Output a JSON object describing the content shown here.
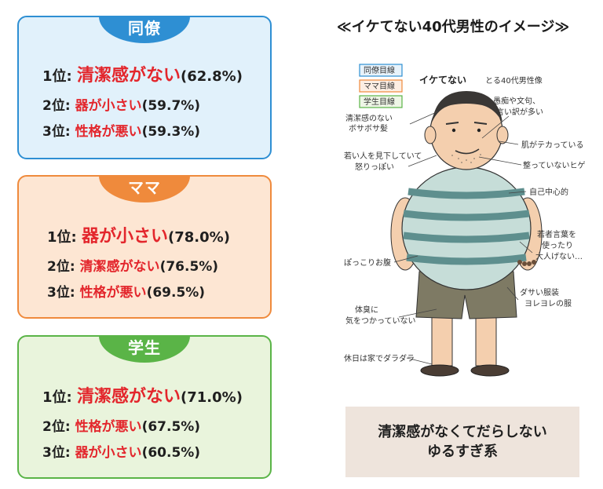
{
  "rankings": [
    {
      "tag": "同僚",
      "items": [
        {
          "rank": "1位:",
          "text": "清潔感がない",
          "pct": "(62.8%)"
        },
        {
          "rank": "2位:",
          "text": "器が小さい",
          "pct": "(59.7%)"
        },
        {
          "rank": "3位:",
          "text": "性格が悪い",
          "pct": "(59.3%)"
        }
      ]
    },
    {
      "tag": "ママ",
      "items": [
        {
          "rank": "1位:",
          "text": "器が小さい",
          "pct": "(78.0%)"
        },
        {
          "rank": "2位:",
          "text": "清潔感がない",
          "pct": "(76.5%)"
        },
        {
          "rank": "3位:",
          "text": "性格が悪い",
          "pct": "(69.5%)"
        }
      ]
    },
    {
      "tag": "学生",
      "items": [
        {
          "rank": "1位:",
          "text": "清潔感がない",
          "pct": "(71.0%)"
        },
        {
          "rank": "2位:",
          "text": "性格が悪い",
          "pct": "(67.5%)"
        },
        {
          "rank": "3位:",
          "text": "器が小さい",
          "pct": "(60.5%)"
        }
      ]
    }
  ],
  "right": {
    "title": "≪イケてない40代男性のイメージ≫",
    "illustration": {
      "legend": [
        "同僚目線",
        "ママ目線",
        "学生目線"
      ],
      "heading_main": "イケてない",
      "heading_sub": "とる40代男性像",
      "annotations": [
        "愚痴や文句、",
        "言い訳が多い",
        "清潔感のない",
        "ボサボサ髪",
        "肌がテカっている",
        "若い人を見下していて",
        "怒りっぽい",
        "整っていないヒゲ",
        "自己中心的",
        "若者言葉を",
        "使ったり",
        "大人げない…",
        "ぽっこりお腹",
        "ダサい服装",
        "ヨレヨレの服",
        "体臭に",
        "気をつかっていない",
        "休日は家でダラダラ"
      ]
    },
    "summary": [
      "清潔感がなくてだらしない",
      "ゆるすぎ系"
    ]
  },
  "colors": {
    "colleague": "#2e8fd3",
    "mama": "#ef8a3c",
    "student": "#5ab447",
    "highlight": "#e3262c"
  }
}
